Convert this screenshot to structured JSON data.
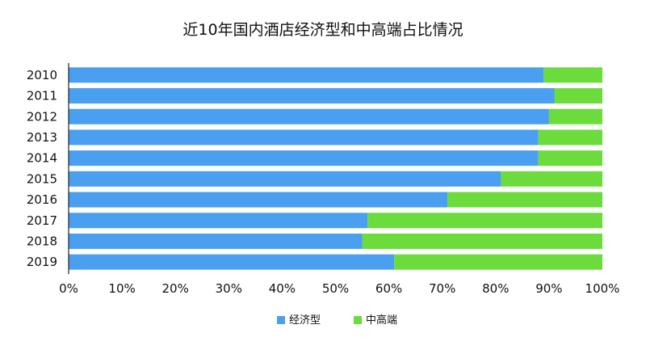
{
  "chart_data": {
    "type": "bar",
    "orientation": "horizontal",
    "stacked": true,
    "percent": true,
    "title": "近10年国内酒店经济型和中高端占比情况",
    "categories": [
      "2010",
      "2011",
      "2012",
      "2013",
      "2014",
      "2015",
      "2016",
      "2017",
      "2018",
      "2019"
    ],
    "series": [
      {
        "name": "经济型",
        "color": "#4a9ff1",
        "values": [
          89,
          91,
          90,
          88,
          88,
          81,
          71,
          56,
          55,
          61
        ]
      },
      {
        "name": "中高端",
        "color": "#6bdc3c",
        "values": [
          11,
          9,
          10,
          12,
          12,
          19,
          29,
          44,
          45,
          39
        ]
      }
    ],
    "xlim": [
      0,
      100
    ],
    "xticks": [
      "0%",
      "10%",
      "20%",
      "30%",
      "40%",
      "50%",
      "60%",
      "70%",
      "80%",
      "90%",
      "100%"
    ],
    "xlabel": "",
    "ylabel": "",
    "grid": false,
    "legend_position": "bottom"
  }
}
